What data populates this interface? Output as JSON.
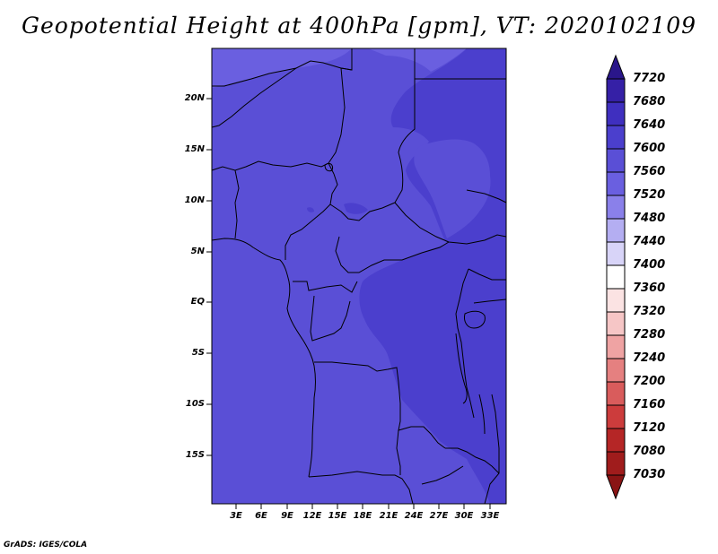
{
  "title": "Geopotential Height at 400hPa [gpm], VT: 2020102109",
  "footer": "GrADS: IGES/COLA",
  "map": {
    "lat_labels": [
      "20N",
      "15N",
      "10N",
      "5N",
      "EQ",
      "5S",
      "10S",
      "15S"
    ],
    "lon_labels": [
      "3E",
      "6E",
      "9E",
      "12E",
      "15E",
      "18E",
      "21E",
      "24E",
      "27E",
      "30E",
      "33E"
    ]
  },
  "colorbar": {
    "labels": [
      "7720",
      "7680",
      "7640",
      "7600",
      "7560",
      "7520",
      "7480",
      "7440",
      "7400",
      "7360",
      "7320",
      "7280",
      "7240",
      "7200",
      "7160",
      "7120",
      "7080",
      "7030"
    ],
    "colors": [
      "#2a168a",
      "#3520a6",
      "#3f2fbf",
      "#4b3fcd",
      "#5a4fd6",
      "#6a5fe0",
      "#8a80ea",
      "#b4aef2",
      "#d8d4f8",
      "#ffffff",
      "#fbe3e3",
      "#f6c6c6",
      "#efa3a3",
      "#e58080",
      "#d95c5c",
      "#cc3c3c",
      "#b52626",
      "#a01c1c",
      "#8a1414"
    ]
  }
}
